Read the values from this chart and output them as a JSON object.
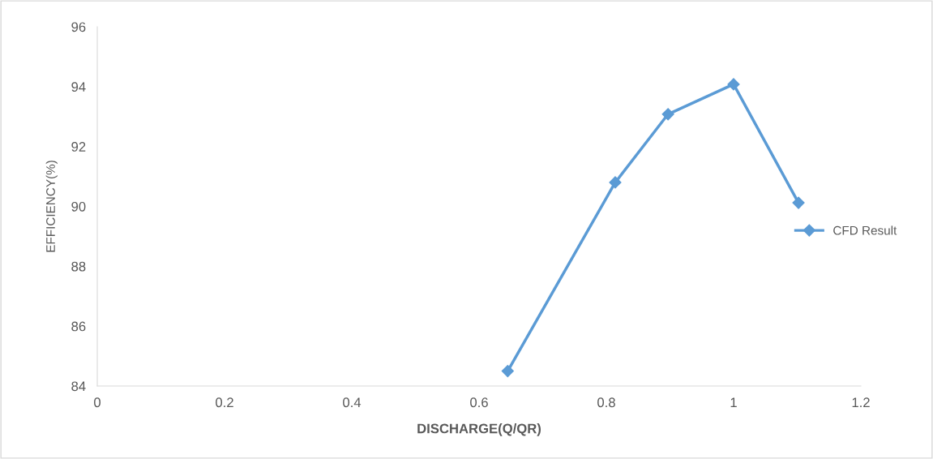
{
  "chart_data": {
    "type": "line",
    "xlabel": "DISCHARGE(Q/QR)",
    "ylabel": "EFFICIENCY(%)",
    "series": [
      {
        "name": "CFD Result",
        "color": "#5b9bd5",
        "x": [
          0.645,
          0.814,
          0.897,
          1.0,
          1.102
        ],
        "values": [
          84.5,
          90.8,
          93.08,
          94.08,
          90.12
        ]
      }
    ],
    "xlim": [
      0,
      1.2
    ],
    "xticks": [
      0,
      0.2,
      0.4,
      0.6,
      0.8,
      1,
      1.2
    ],
    "ylim": [
      84,
      96
    ],
    "yticks": [
      84,
      86,
      88,
      90,
      92,
      94,
      96
    ],
    "grid": false,
    "legend": "right",
    "marker": "diamond",
    "line_style": "solid"
  }
}
